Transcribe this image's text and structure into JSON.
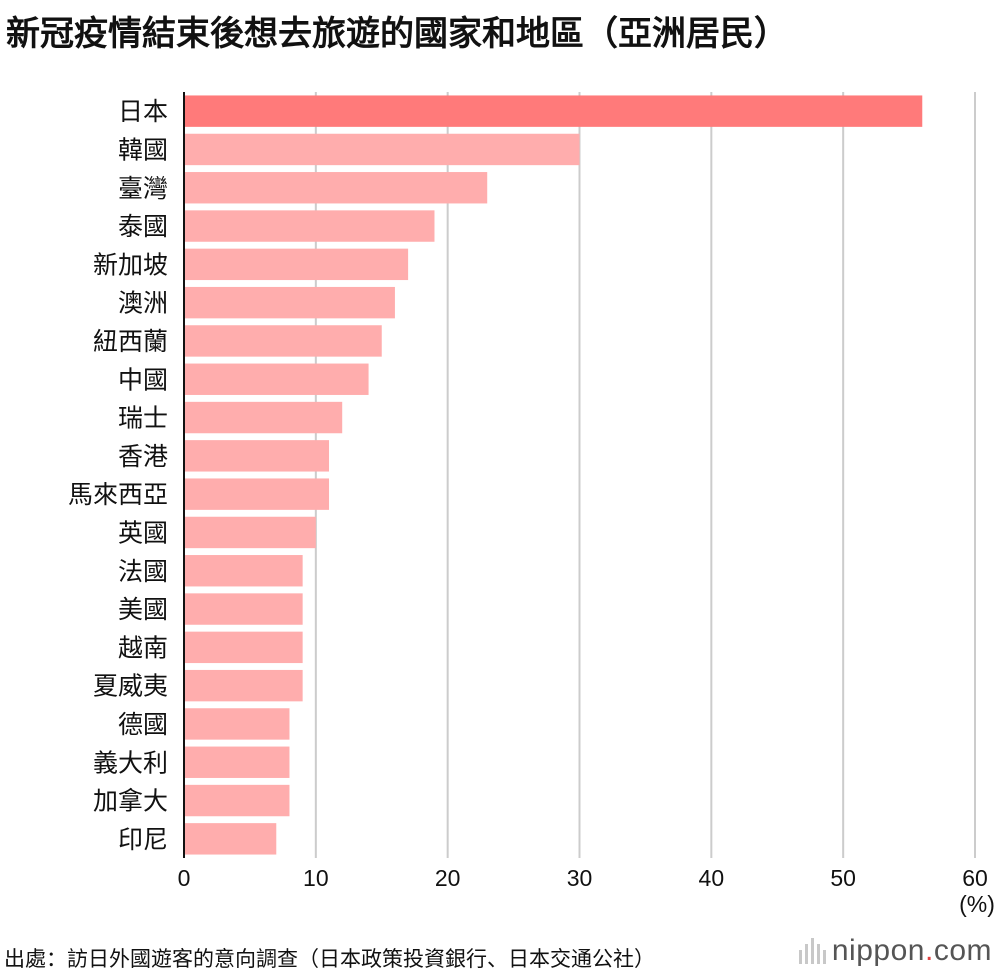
{
  "header": {
    "title": "新冠疫情結束後想去旅遊的國家和地區（亞洲居民）"
  },
  "chart_data": {
    "type": "bar",
    "orientation": "horizontal",
    "title": "新冠疫情結束後想去旅遊的國家和地區（亞洲居民）",
    "unit_label": "(%)",
    "categories": [
      "日本",
      "韓國",
      "臺灣",
      "泰國",
      "新加坡",
      "澳洲",
      "紐西蘭",
      "中國",
      "瑞士",
      "香港",
      "馬來西亞",
      "英國",
      "法國",
      "美國",
      "越南",
      "夏威夷",
      "德國",
      "義大利",
      "加拿大",
      "印尼"
    ],
    "values": [
      56,
      30,
      23,
      19,
      17,
      16,
      15,
      14,
      12,
      11,
      11,
      10,
      9,
      9,
      9,
      9,
      8,
      8,
      8,
      7
    ],
    "xlim": [
      0,
      60
    ],
    "xticks": [
      "0",
      "10",
      "20",
      "30",
      "40",
      "50",
      "60"
    ],
    "grid": true,
    "colors": {
      "highlight": "#ff7a7a",
      "bar": "#ffadad",
      "grid": "#cccccc",
      "axis": "#111111"
    }
  },
  "footer": {
    "source": "出處：訪日外國遊客的意向調查（日本政策投資銀行、日本交通公社）",
    "logo_name": "nippon",
    "logo_dot": ".",
    "logo_suffix": "com"
  }
}
